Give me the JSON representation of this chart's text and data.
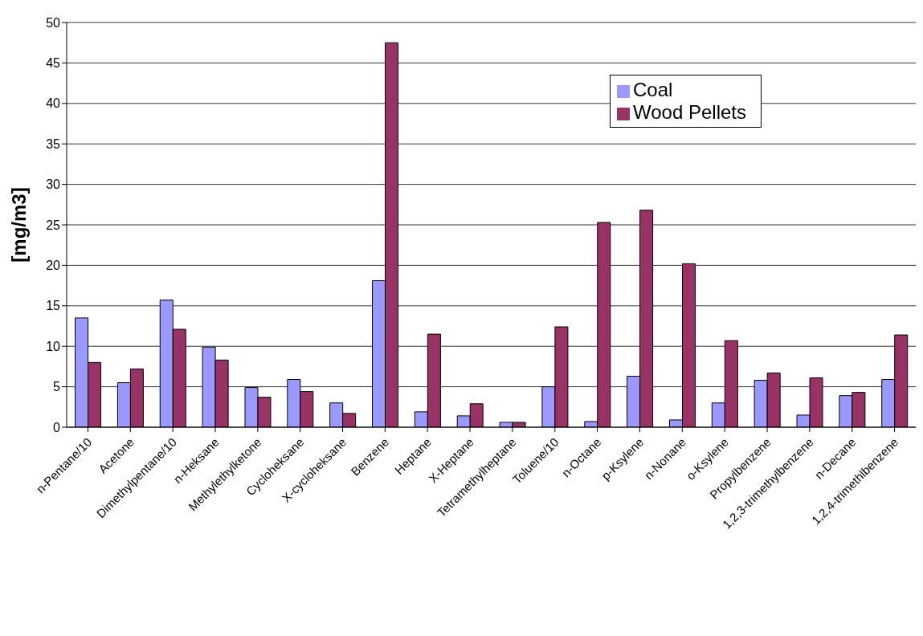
{
  "chart_data": {
    "type": "bar",
    "ylabel": "[mg/m3]",
    "categories": [
      "n-Pentane/10",
      "Acetone",
      "Dimethylpentane/10",
      "n-Heksane",
      "Methylethylketone",
      "Cycloheksane",
      "X-cycloheksane",
      "Benzene",
      "Heptane",
      "X-Heptane",
      "Tetramethylheptane",
      "Toluene/10",
      "n-Octane",
      "p-Ksylene",
      "n-Nonane",
      "o-Ksylene",
      "Propylbenzene",
      "1,2,3-trimethylbenzene",
      "n-Decane",
      "1,2,4-trimethlbenzene"
    ],
    "series": [
      {
        "name": "Coal",
        "color": "#9999ff",
        "values": [
          13.5,
          5.5,
          15.7,
          9.9,
          4.9,
          5.9,
          3.0,
          18.1,
          1.9,
          1.4,
          0.6,
          5.0,
          0.7,
          6.3,
          0.9,
          3.0,
          5.8,
          1.5,
          3.9,
          5.9
        ]
      },
      {
        "name": "Wood Pellets",
        "color": "#993366",
        "values": [
          8.0,
          7.2,
          12.1,
          8.3,
          3.7,
          4.4,
          1.7,
          47.5,
          11.5,
          2.9,
          0.6,
          12.4,
          25.3,
          26.8,
          20.2,
          10.7,
          6.7,
          6.1,
          4.3,
          11.4
        ]
      }
    ],
    "ylim": [
      0,
      50
    ],
    "yticks": [
      0,
      5,
      10,
      15,
      20,
      25,
      30,
      35,
      40,
      45,
      50
    ],
    "grid": "y",
    "legend": "top right"
  }
}
